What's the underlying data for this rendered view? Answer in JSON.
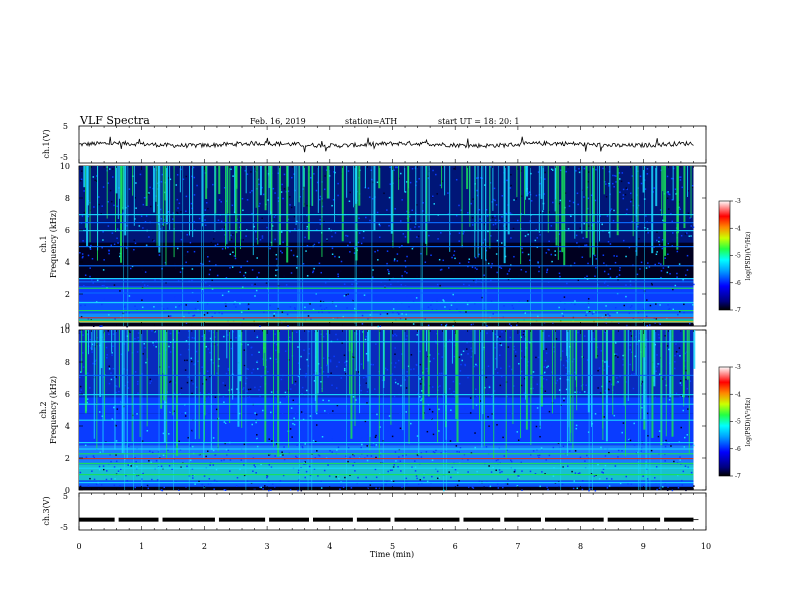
{
  "header": {
    "title": "VLF  Spectra",
    "date": "Feb. 16, 2019",
    "station": "station=ATH",
    "start": "start  UT  =    18: 20: 1"
  },
  "chart_data": [
    {
      "type": "line",
      "panel": "ch1-waveform",
      "ylabel": "ch.1(V)",
      "yticks": [
        "5",
        "-5"
      ],
      "ylim": [
        -5,
        5
      ],
      "x_range": [
        0,
        9.8
      ],
      "y_level": 0,
      "y_noise": 0.6
    },
    {
      "type": "heatmap",
      "panel": "ch1-spectrogram",
      "ylabel": "ch.1",
      "ylabel2": "Frequency  (kHz)",
      "yticks": [
        "0",
        "2",
        "4",
        "6",
        "8",
        "10"
      ],
      "ylim": [
        0,
        10
      ],
      "x_range": [
        0,
        9.8
      ],
      "colorbar": {
        "label": "log(PSD)(V²/Hz)",
        "ticks": [
          "-3",
          "-4",
          "-5",
          "-6",
          "-7"
        ],
        "range": [
          -7,
          -3
        ]
      }
    },
    {
      "type": "heatmap",
      "panel": "ch2-spectrogram",
      "ylabel": "ch.2",
      "ylabel2": "Frequency  (kHz)",
      "yticks": [
        "0",
        "2",
        "4",
        "6",
        "8",
        "10"
      ],
      "ylim": [
        0,
        10
      ],
      "x_range": [
        0,
        9.8
      ],
      "colorbar": {
        "label": "log(PSD)(V²/Hz)",
        "ticks": [
          "-3",
          "-4",
          "-5",
          "-6",
          "-7"
        ],
        "range": [
          -7,
          -3
        ]
      }
    },
    {
      "type": "line",
      "panel": "ch3-timing",
      "ylabel": "ch.3(V)",
      "yticks": [
        "5",
        "-5"
      ],
      "ylim": [
        -5,
        5
      ],
      "x_range": [
        0,
        9.8
      ],
      "y_level": -2.2,
      "gap_times": [
        0.6,
        1.3,
        2.2,
        3.0,
        3.7,
        4.4,
        5.0,
        6.1,
        6.75,
        7.4,
        8.4,
        9.3
      ]
    }
  ],
  "xaxis": {
    "label": "Time  (min)",
    "ticks": [
      "0",
      "1",
      "2",
      "3",
      "4",
      "5",
      "6",
      "7",
      "8",
      "9",
      "10"
    ],
    "range": [
      0,
      10
    ]
  },
  "colors": {
    "background_dark": "#000018",
    "noise_blue": "#0a3cff",
    "hiss_green": "#18e05a",
    "cyan": "#19d8ff"
  }
}
